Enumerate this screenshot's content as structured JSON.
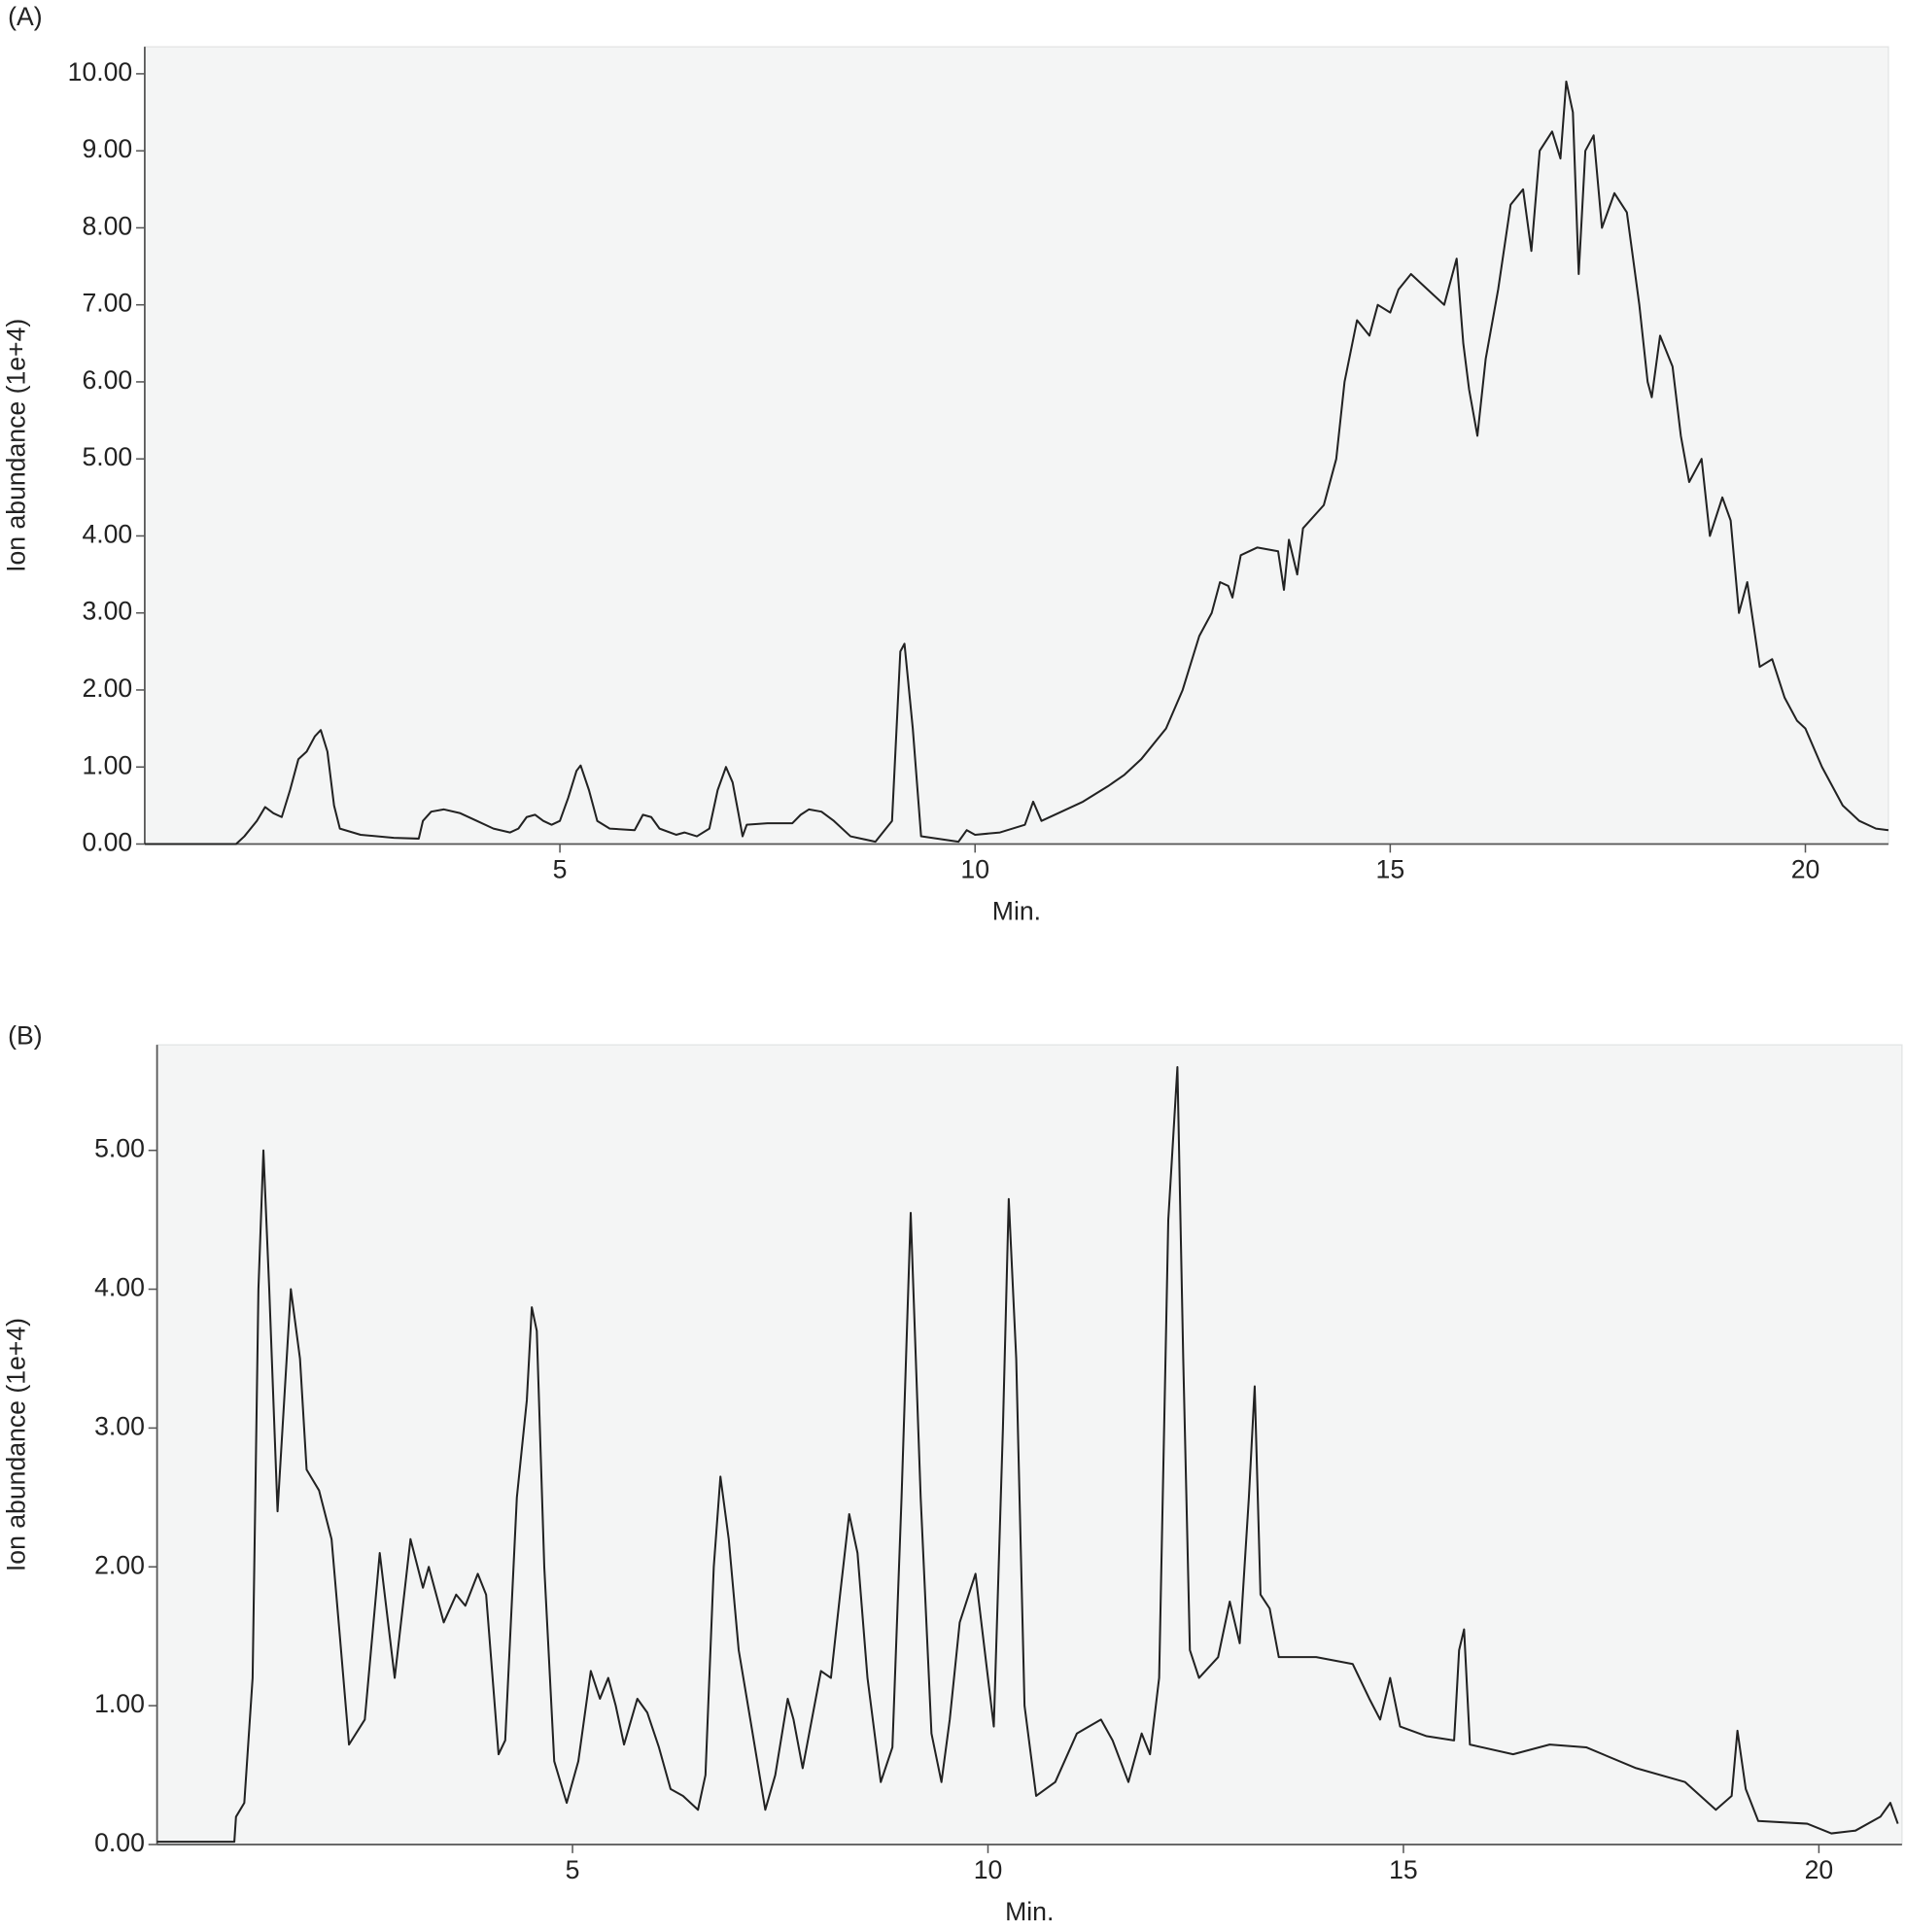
{
  "chart_data": [
    {
      "type": "line",
      "panel_label": "(A)",
      "ylabel": "Ion abundance (1e+4)",
      "xlabel": "Min.",
      "color": "#222222",
      "xlim": [
        0,
        21
      ],
      "ylim": [
        0,
        10.35
      ],
      "xticks": [
        5,
        10,
        15,
        20
      ],
      "yticks": [
        {
          "value": 0,
          "label": "0.00"
        },
        {
          "value": 1,
          "label": "1.00"
        },
        {
          "value": 2,
          "label": "2.00"
        },
        {
          "value": 3,
          "label": "3.00"
        },
        {
          "value": 4,
          "label": "4.00"
        },
        {
          "value": 5,
          "label": "5.00"
        },
        {
          "value": 6,
          "label": "6.00"
        },
        {
          "value": 7,
          "label": "7.00"
        },
        {
          "value": 8,
          "label": "8.00"
        },
        {
          "value": 9,
          "label": "9.00"
        },
        {
          "value": 10,
          "label": "10.00"
        }
      ],
      "x": [
        0,
        1.1,
        1.2,
        1.35,
        1.45,
        1.55,
        1.65,
        1.75,
        1.85,
        1.95,
        2.05,
        2.12,
        2.2,
        2.28,
        2.35,
        2.6,
        3.0,
        3.3,
        3.35,
        3.45,
        3.6,
        3.8,
        4.0,
        4.2,
        4.4,
        4.5,
        4.6,
        4.7,
        4.8,
        4.9,
        5.0,
        5.1,
        5.2,
        5.25,
        5.35,
        5.45,
        5.6,
        5.9,
        6.0,
        6.1,
        6.2,
        6.4,
        6.5,
        6.65,
        6.8,
        6.9,
        7.0,
        7.08,
        7.15,
        7.2,
        7.25,
        7.5,
        7.8,
        7.9,
        8.0,
        8.15,
        8.3,
        8.5,
        8.8,
        9.0,
        9.1,
        9.15,
        9.25,
        9.35,
        9.8,
        9.9,
        10.0,
        10.3,
        10.6,
        10.7,
        10.8,
        11.0,
        11.3,
        11.6,
        11.8,
        12.0,
        12.3,
        12.5,
        12.7,
        12.85,
        12.95,
        13.05,
        13.1,
        13.2,
        13.4,
        13.65,
        13.72,
        13.78,
        13.88,
        13.95,
        14.2,
        14.35,
        14.45,
        14.6,
        14.75,
        14.85,
        15.0,
        15.1,
        15.25,
        15.45,
        15.65,
        15.8,
        15.88,
        15.95,
        16.05,
        16.15,
        16.3,
        16.45,
        16.6,
        16.7,
        16.8,
        16.95,
        17.05,
        17.12,
        17.2,
        17.27,
        17.35,
        17.45,
        17.55,
        17.7,
        17.85,
        18.0,
        18.1,
        18.15,
        18.25,
        18.4,
        18.5,
        18.6,
        18.75,
        18.85,
        19.0,
        19.1,
        19.2,
        19.3,
        19.45,
        19.6,
        19.75,
        19.9,
        20.0,
        20.2,
        20.45,
        20.65,
        20.85,
        21.0
      ],
      "values": [
        0,
        0,
        0.1,
        0.3,
        0.48,
        0.4,
        0.35,
        0.7,
        1.1,
        1.2,
        1.4,
        1.48,
        1.2,
        0.5,
        0.2,
        0.12,
        0.08,
        0.07,
        0.3,
        0.42,
        0.45,
        0.4,
        0.3,
        0.2,
        0.15,
        0.2,
        0.35,
        0.38,
        0.3,
        0.25,
        0.3,
        0.6,
        0.95,
        1.02,
        0.7,
        0.3,
        0.2,
        0.18,
        0.38,
        0.35,
        0.2,
        0.12,
        0.15,
        0.1,
        0.2,
        0.7,
        1.0,
        0.8,
        0.4,
        0.1,
        0.25,
        0.27,
        0.27,
        0.38,
        0.45,
        0.42,
        0.3,
        0.1,
        0.03,
        0.3,
        2.5,
        2.6,
        1.5,
        0.1,
        0.03,
        0.18,
        0.12,
        0.15,
        0.25,
        0.55,
        0.3,
        0.4,
        0.55,
        0.75,
        0.9,
        1.1,
        1.5,
        2.0,
        2.7,
        3.0,
        3.4,
        3.35,
        3.2,
        3.75,
        3.85,
        3.8,
        3.3,
        3.95,
        3.5,
        4.1,
        4.4,
        5.0,
        6.0,
        6.8,
        6.6,
        7.0,
        6.9,
        7.2,
        7.4,
        7.2,
        7.0,
        7.6,
        6.5,
        5.9,
        5.3,
        6.3,
        7.2,
        8.3,
        8.5,
        7.7,
        9.0,
        9.25,
        8.9,
        9.9,
        9.5,
        7.4,
        9.0,
        9.2,
        8.0,
        8.45,
        8.2,
        7.0,
        6.0,
        5.8,
        6.6,
        6.2,
        5.3,
        4.7,
        5.0,
        4.0,
        4.5,
        4.2,
        3.0,
        3.4,
        2.3,
        2.4,
        1.9,
        1.6,
        1.5,
        1.0,
        0.5,
        0.3,
        0.2,
        0.18
      ]
    },
    {
      "type": "line",
      "panel_label": "(B)",
      "ylabel": "Ion abundance (1e+4)",
      "xlabel": "Min.",
      "color": "#222222",
      "xlim": [
        0,
        21
      ],
      "ylim": [
        0,
        5.76
      ],
      "xticks": [
        5,
        10,
        15,
        20
      ],
      "yticks": [
        {
          "value": 0,
          "label": "0.00"
        },
        {
          "value": 1,
          "label": "1.00"
        },
        {
          "value": 2,
          "label": "2.00"
        },
        {
          "value": 3,
          "label": "3.00"
        },
        {
          "value": 4,
          "label": "4.00"
        },
        {
          "value": 5,
          "label": "5.00"
        }
      ],
      "x": [
        0,
        0.93,
        0.95,
        1.05,
        1.15,
        1.22,
        1.28,
        1.35,
        1.45,
        1.61,
        1.72,
        1.8,
        1.95,
        2.1,
        2.2,
        2.31,
        2.5,
        2.68,
        2.86,
        3.05,
        3.2,
        3.27,
        3.45,
        3.6,
        3.71,
        3.86,
        3.96,
        4.11,
        4.19,
        4.33,
        4.45,
        4.51,
        4.57,
        4.66,
        4.78,
        4.93,
        5.07,
        5.22,
        5.33,
        5.43,
        5.52,
        5.62,
        5.78,
        5.9,
        6.04,
        6.18,
        6.33,
        6.51,
        6.6,
        6.7,
        6.78,
        6.88,
        7.0,
        7.14,
        7.32,
        7.44,
        7.59,
        7.66,
        7.77,
        7.99,
        8.11,
        8.22,
        8.33,
        8.43,
        8.55,
        8.71,
        8.85,
        8.96,
        9.07,
        9.19,
        9.32,
        9.44,
        9.54,
        9.66,
        9.85,
        9.96,
        10.07,
        10.18,
        10.25,
        10.34,
        10.44,
        10.58,
        10.81,
        11.07,
        11.36,
        11.5,
        11.69,
        11.85,
        11.95,
        12.06,
        12.17,
        12.28,
        12.35,
        12.43,
        12.54,
        12.77,
        12.91,
        13.03,
        13.14,
        13.21,
        13.28,
        13.39,
        13.5,
        13.95,
        14.39,
        14.59,
        14.72,
        14.84,
        14.96,
        15.28,
        15.61,
        15.67,
        15.73,
        15.8,
        16.32,
        16.76,
        17.2,
        17.8,
        18.39,
        18.76,
        18.95,
        19.02,
        19.12,
        19.27,
        19.86,
        20.15,
        20.44,
        20.74,
        20.86,
        20.95
      ],
      "values": [
        0.02,
        0.02,
        0.2,
        0.3,
        1.2,
        4.0,
        5.0,
        4.0,
        2.4,
        4.0,
        3.5,
        2.7,
        2.55,
        2.2,
        1.5,
        0.72,
        0.9,
        2.1,
        1.2,
        2.2,
        1.85,
        2.0,
        1.6,
        1.8,
        1.72,
        1.95,
        1.8,
        0.65,
        0.75,
        2.5,
        3.2,
        3.87,
        3.7,
        2.0,
        0.6,
        0.3,
        0.6,
        1.25,
        1.05,
        1.2,
        1.0,
        0.72,
        1.05,
        0.95,
        0.7,
        0.4,
        0.35,
        0.25,
        0.5,
        2.0,
        2.65,
        2.2,
        1.4,
        0.9,
        0.25,
        0.5,
        1.05,
        0.9,
        0.55,
        1.25,
        1.2,
        1.8,
        2.38,
        2.1,
        1.2,
        0.45,
        0.7,
        2.5,
        4.55,
        2.5,
        0.8,
        0.45,
        0.9,
        1.6,
        1.95,
        1.4,
        0.85,
        3.0,
        4.65,
        3.5,
        1.0,
        0.35,
        0.45,
        0.8,
        0.9,
        0.75,
        0.45,
        0.8,
        0.65,
        1.2,
        4.5,
        5.6,
        3.5,
        1.4,
        1.2,
        1.35,
        1.75,
        1.45,
        2.5,
        3.3,
        1.8,
        1.7,
        1.35,
        1.35,
        1.3,
        1.05,
        0.9,
        1.2,
        0.85,
        0.78,
        0.75,
        1.4,
        1.55,
        0.72,
        0.65,
        0.72,
        0.7,
        0.55,
        0.45,
        0.25,
        0.35,
        0.82,
        0.4,
        0.17,
        0.15,
        0.08,
        0.1,
        0.2,
        0.3,
        0.15
      ]
    }
  ]
}
